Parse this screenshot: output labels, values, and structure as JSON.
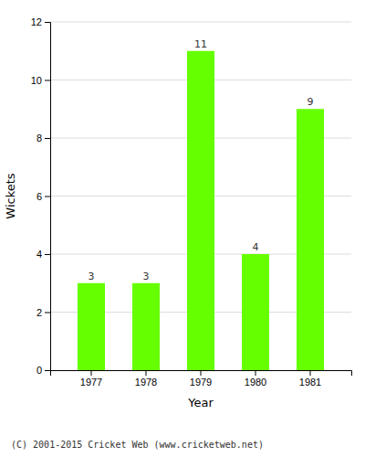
{
  "chart_data": {
    "type": "bar",
    "categories": [
      "1977",
      "1978",
      "1979",
      "1980",
      "1981"
    ],
    "values": [
      3,
      3,
      11,
      4,
      9
    ],
    "color": "#66ff00",
    "xlabel": "Year",
    "ylabel": "Wickets",
    "ylim": [
      0,
      12
    ],
    "yticks": [
      0,
      2,
      4,
      6,
      8,
      10,
      12
    ],
    "grid": true,
    "data_labels": true,
    "annotations": [
      "(C) 2001-2015 Cricket Web (www.cricketweb.net)"
    ]
  }
}
